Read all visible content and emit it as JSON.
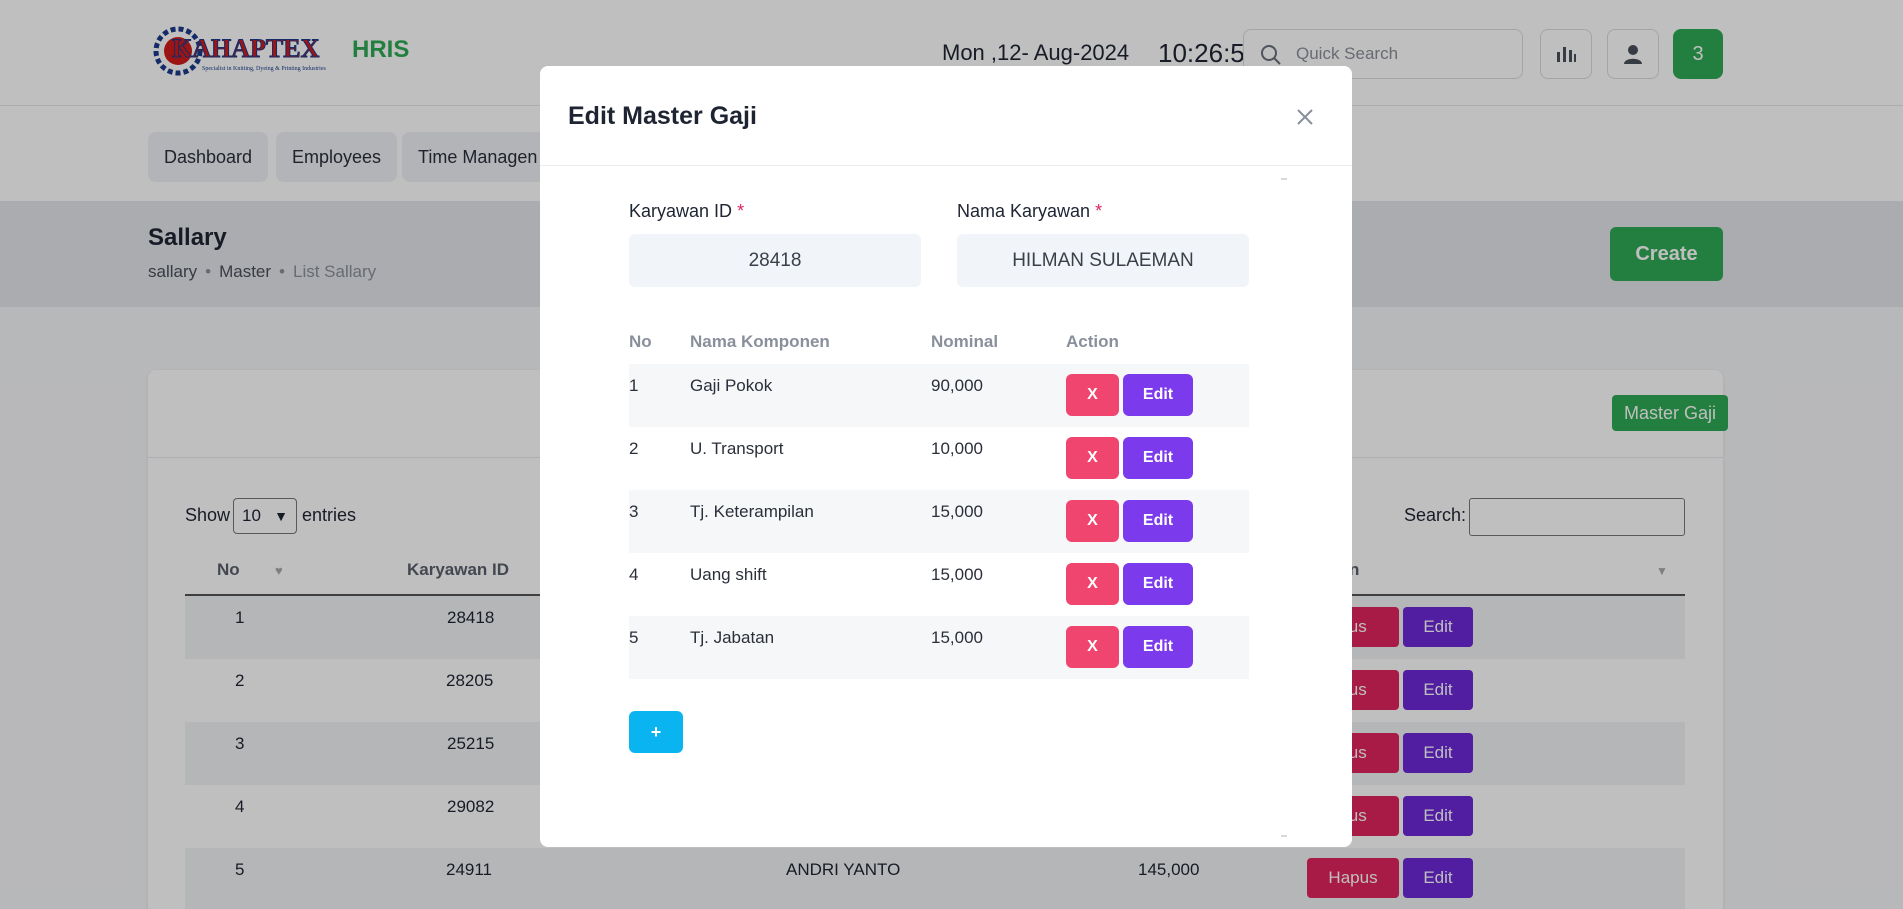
{
  "header": {
    "logo_text": "KAHAPTEX",
    "logo_tagline": "Specialist in Knitting, Dyeing & Printing Industries",
    "app_name": "HRIS",
    "date": "Mon ,12- Aug-2024",
    "time": "10:26:5",
    "search_placeholder": "Quick Search",
    "notification_count": "3"
  },
  "nav": {
    "items": [
      {
        "label": "Dashboard"
      },
      {
        "label": "Employees"
      },
      {
        "label": "Time Managen"
      }
    ]
  },
  "page": {
    "title": "Sallary",
    "breadcrumb": [
      "sallary",
      "Master",
      "List Sallary"
    ],
    "create_label": "Create",
    "master_gaji_label": "Master Gaji"
  },
  "table": {
    "show_label": "Show",
    "entries_value": "10",
    "entries_label": "entries",
    "search_label": "Search:",
    "columns": {
      "no": "No",
      "karyawan_id": "Karyawan ID",
      "action_partial": "n"
    },
    "rows": [
      {
        "no": "1",
        "karyawan_id": "28418",
        "nama": "",
        "nominal": ""
      },
      {
        "no": "2",
        "karyawan_id": "28205",
        "nama": "",
        "nominal": ""
      },
      {
        "no": "3",
        "karyawan_id": "25215",
        "nama": "",
        "nominal": ""
      },
      {
        "no": "4",
        "karyawan_id": "29082",
        "nama": "",
        "nominal": ""
      },
      {
        "no": "5",
        "karyawan_id": "24911",
        "nama": "ANDRI YANTO",
        "nominal": "145,000"
      }
    ],
    "hapus_label": "pus",
    "hapus_full_label": "Hapus",
    "edit_label": "Edit"
  },
  "modal": {
    "title": "Edit Master Gaji",
    "karyawan_id_label": "Karyawan ID",
    "karyawan_id_value": "28418",
    "nama_label": "Nama Karyawan",
    "nama_value": "HILMAN SULAEMAN",
    "required_mark": "*",
    "columns": {
      "no": "No",
      "komponen": "Nama Komponen",
      "nominal": "Nominal",
      "action": "Action"
    },
    "rows": [
      {
        "no": "1",
        "komponen": "Gaji Pokok",
        "nominal": "90,000"
      },
      {
        "no": "2",
        "komponen": "U. Transport",
        "nominal": "10,000"
      },
      {
        "no": "3",
        "komponen": "Tj. Keterampilan",
        "nominal": "15,000"
      },
      {
        "no": "4",
        "komponen": "Uang shift",
        "nominal": "15,000"
      },
      {
        "no": "5",
        "komponen": "Tj. Jabatan",
        "nominal": "15,000"
      }
    ],
    "delete_label": "X",
    "edit_label": "Edit",
    "add_label": "+"
  },
  "colors": {
    "brand_green": "#2eaa55",
    "danger": "#f0456e",
    "purple": "#7c3aed",
    "info": "#0ab4f0"
  }
}
